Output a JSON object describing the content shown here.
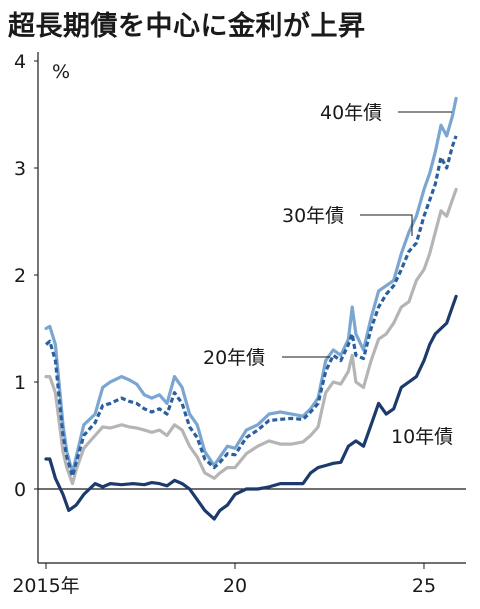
{
  "chart_data": {
    "type": "line",
    "title": "超長期債を中心に金利が上昇",
    "ylabel": "%",
    "xlabel": "",
    "x_range": [
      2015.0,
      2025.9
    ],
    "ylim": [
      -0.7,
      4
    ],
    "y_ticks": [
      0,
      1,
      2,
      3,
      4
    ],
    "x_ticks": [
      {
        "x": 2015.0,
        "label": "2015年"
      },
      {
        "x": 2020.0,
        "label": "20"
      },
      {
        "x": 2025.0,
        "label": "25"
      }
    ],
    "grid": false,
    "legend": "direct labels on lines",
    "series": [
      {
        "name": "40年債",
        "color": "#7ba6d2",
        "style": "solid",
        "points": [
          [
            2015.0,
            1.5
          ],
          [
            2015.1,
            1.52
          ],
          [
            2015.25,
            1.35
          ],
          [
            2015.45,
            0.6
          ],
          [
            2015.55,
            0.35
          ],
          [
            2015.7,
            0.15
          ],
          [
            2015.8,
            0.3
          ],
          [
            2016.0,
            0.6
          ],
          [
            2016.3,
            0.7
          ],
          [
            2016.5,
            0.95
          ],
          [
            2016.7,
            1.0
          ],
          [
            2017.0,
            1.05
          ],
          [
            2017.2,
            1.02
          ],
          [
            2017.4,
            0.98
          ],
          [
            2017.6,
            0.88
          ],
          [
            2017.8,
            0.85
          ],
          [
            2018.0,
            0.88
          ],
          [
            2018.2,
            0.8
          ],
          [
            2018.4,
            1.05
          ],
          [
            2018.6,
            0.95
          ],
          [
            2018.8,
            0.7
          ],
          [
            2019.0,
            0.6
          ],
          [
            2019.2,
            0.35
          ],
          [
            2019.45,
            0.22
          ],
          [
            2019.6,
            0.3
          ],
          [
            2019.8,
            0.4
          ],
          [
            2020.0,
            0.38
          ],
          [
            2020.3,
            0.55
          ],
          [
            2020.6,
            0.6
          ],
          [
            2020.9,
            0.7
          ],
          [
            2021.2,
            0.72
          ],
          [
            2021.5,
            0.7
          ],
          [
            2021.8,
            0.68
          ],
          [
            2022.0,
            0.75
          ],
          [
            2022.2,
            0.85
          ],
          [
            2022.4,
            1.2
          ],
          [
            2022.6,
            1.3
          ],
          [
            2022.8,
            1.25
          ],
          [
            2023.0,
            1.4
          ],
          [
            2023.1,
            1.7
          ],
          [
            2023.2,
            1.45
          ],
          [
            2023.4,
            1.3
          ],
          [
            2023.6,
            1.6
          ],
          [
            2023.8,
            1.85
          ],
          [
            2024.0,
            1.9
          ],
          [
            2024.2,
            1.95
          ],
          [
            2024.4,
            2.2
          ],
          [
            2024.6,
            2.4
          ],
          [
            2024.8,
            2.55
          ],
          [
            2025.0,
            2.8
          ],
          [
            2025.15,
            2.95
          ],
          [
            2025.3,
            3.15
          ],
          [
            2025.45,
            3.4
          ],
          [
            2025.6,
            3.3
          ],
          [
            2025.75,
            3.48
          ],
          [
            2025.85,
            3.65
          ]
        ]
      },
      {
        "name": "30年債",
        "color": "#2b5f9e",
        "style": "dashed",
        "points": [
          [
            2015.0,
            1.35
          ],
          [
            2015.1,
            1.38
          ],
          [
            2015.25,
            1.2
          ],
          [
            2015.45,
            0.5
          ],
          [
            2015.55,
            0.3
          ],
          [
            2015.7,
            0.12
          ],
          [
            2015.8,
            0.25
          ],
          [
            2016.0,
            0.5
          ],
          [
            2016.3,
            0.62
          ],
          [
            2016.5,
            0.78
          ],
          [
            2016.7,
            0.8
          ],
          [
            2017.0,
            0.85
          ],
          [
            2017.2,
            0.82
          ],
          [
            2017.4,
            0.8
          ],
          [
            2017.6,
            0.75
          ],
          [
            2017.8,
            0.72
          ],
          [
            2018.0,
            0.75
          ],
          [
            2018.2,
            0.7
          ],
          [
            2018.4,
            0.9
          ],
          [
            2018.6,
            0.8
          ],
          [
            2018.8,
            0.58
          ],
          [
            2019.0,
            0.48
          ],
          [
            2019.2,
            0.28
          ],
          [
            2019.45,
            0.2
          ],
          [
            2019.6,
            0.25
          ],
          [
            2019.8,
            0.33
          ],
          [
            2020.0,
            0.32
          ],
          [
            2020.3,
            0.48
          ],
          [
            2020.6,
            0.55
          ],
          [
            2020.9,
            0.64
          ],
          [
            2021.2,
            0.65
          ],
          [
            2021.5,
            0.66
          ],
          [
            2021.8,
            0.65
          ],
          [
            2022.0,
            0.72
          ],
          [
            2022.2,
            0.8
          ],
          [
            2022.4,
            1.1
          ],
          [
            2022.6,
            1.25
          ],
          [
            2022.8,
            1.2
          ],
          [
            2023.0,
            1.35
          ],
          [
            2023.1,
            1.45
          ],
          [
            2023.2,
            1.25
          ],
          [
            2023.4,
            1.22
          ],
          [
            2023.6,
            1.5
          ],
          [
            2023.8,
            1.7
          ],
          [
            2024.0,
            1.82
          ],
          [
            2024.2,
            1.9
          ],
          [
            2024.4,
            2.05
          ],
          [
            2024.6,
            2.22
          ],
          [
            2024.8,
            2.3
          ],
          [
            2025.0,
            2.55
          ],
          [
            2025.15,
            2.7
          ],
          [
            2025.3,
            2.85
          ],
          [
            2025.45,
            3.1
          ],
          [
            2025.6,
            3.0
          ],
          [
            2025.75,
            3.2
          ],
          [
            2025.85,
            3.3
          ]
        ]
      },
      {
        "name": "20年債",
        "color": "#b5b5b5",
        "style": "solid",
        "points": [
          [
            2015.0,
            1.05
          ],
          [
            2015.1,
            1.05
          ],
          [
            2015.25,
            0.9
          ],
          [
            2015.45,
            0.35
          ],
          [
            2015.55,
            0.2
          ],
          [
            2015.7,
            0.05
          ],
          [
            2015.8,
            0.18
          ],
          [
            2016.0,
            0.38
          ],
          [
            2016.3,
            0.5
          ],
          [
            2016.5,
            0.58
          ],
          [
            2016.7,
            0.57
          ],
          [
            2017.0,
            0.6
          ],
          [
            2017.2,
            0.58
          ],
          [
            2017.4,
            0.57
          ],
          [
            2017.6,
            0.55
          ],
          [
            2017.8,
            0.53
          ],
          [
            2018.0,
            0.55
          ],
          [
            2018.2,
            0.5
          ],
          [
            2018.4,
            0.6
          ],
          [
            2018.6,
            0.55
          ],
          [
            2018.8,
            0.4
          ],
          [
            2019.0,
            0.3
          ],
          [
            2019.2,
            0.15
          ],
          [
            2019.45,
            0.1
          ],
          [
            2019.6,
            0.15
          ],
          [
            2019.8,
            0.2
          ],
          [
            2020.0,
            0.2
          ],
          [
            2020.3,
            0.33
          ],
          [
            2020.6,
            0.4
          ],
          [
            2020.9,
            0.45
          ],
          [
            2021.2,
            0.42
          ],
          [
            2021.5,
            0.42
          ],
          [
            2021.8,
            0.44
          ],
          [
            2022.0,
            0.5
          ],
          [
            2022.2,
            0.58
          ],
          [
            2022.4,
            0.9
          ],
          [
            2022.6,
            1.0
          ],
          [
            2022.8,
            0.98
          ],
          [
            2023.0,
            1.1
          ],
          [
            2023.1,
            1.25
          ],
          [
            2023.2,
            1.0
          ],
          [
            2023.4,
            0.95
          ],
          [
            2023.6,
            1.2
          ],
          [
            2023.8,
            1.4
          ],
          [
            2024.0,
            1.45
          ],
          [
            2024.2,
            1.55
          ],
          [
            2024.4,
            1.7
          ],
          [
            2024.6,
            1.75
          ],
          [
            2024.8,
            1.95
          ],
          [
            2025.0,
            2.05
          ],
          [
            2025.15,
            2.2
          ],
          [
            2025.3,
            2.4
          ],
          [
            2025.45,
            2.6
          ],
          [
            2025.6,
            2.55
          ],
          [
            2025.75,
            2.7
          ],
          [
            2025.85,
            2.8
          ]
        ]
      },
      {
        "name": "10年債",
        "color": "#1c3a6b",
        "style": "solid",
        "points": [
          [
            2015.0,
            0.28
          ],
          [
            2015.1,
            0.28
          ],
          [
            2015.25,
            0.1
          ],
          [
            2015.45,
            -0.05
          ],
          [
            2015.6,
            -0.2
          ],
          [
            2015.8,
            -0.15
          ],
          [
            2016.0,
            -0.05
          ],
          [
            2016.3,
            0.05
          ],
          [
            2016.5,
            0.02
          ],
          [
            2016.7,
            0.05
          ],
          [
            2017.0,
            0.04
          ],
          [
            2017.3,
            0.05
          ],
          [
            2017.6,
            0.04
          ],
          [
            2017.8,
            0.06
          ],
          [
            2018.0,
            0.05
          ],
          [
            2018.2,
            0.03
          ],
          [
            2018.4,
            0.08
          ],
          [
            2018.6,
            0.05
          ],
          [
            2018.8,
            0.0
          ],
          [
            2019.0,
            -0.1
          ],
          [
            2019.2,
            -0.2
          ],
          [
            2019.45,
            -0.28
          ],
          [
            2019.6,
            -0.2
          ],
          [
            2019.8,
            -0.15
          ],
          [
            2020.0,
            -0.05
          ],
          [
            2020.3,
            0.0
          ],
          [
            2020.6,
            0.0
          ],
          [
            2020.9,
            0.02
          ],
          [
            2021.2,
            0.05
          ],
          [
            2021.5,
            0.05
          ],
          [
            2021.8,
            0.05
          ],
          [
            2022.0,
            0.15
          ],
          [
            2022.2,
            0.2
          ],
          [
            2022.4,
            0.22
          ],
          [
            2022.6,
            0.24
          ],
          [
            2022.8,
            0.25
          ],
          [
            2023.0,
            0.4
          ],
          [
            2023.2,
            0.45
          ],
          [
            2023.4,
            0.4
          ],
          [
            2023.6,
            0.6
          ],
          [
            2023.8,
            0.8
          ],
          [
            2024.0,
            0.7
          ],
          [
            2024.2,
            0.75
          ],
          [
            2024.4,
            0.95
          ],
          [
            2024.6,
            1.0
          ],
          [
            2024.8,
            1.05
          ],
          [
            2025.0,
            1.2
          ],
          [
            2025.15,
            1.35
          ],
          [
            2025.3,
            1.45
          ],
          [
            2025.45,
            1.5
          ],
          [
            2025.6,
            1.55
          ],
          [
            2025.75,
            1.7
          ],
          [
            2025.85,
            1.8
          ]
        ]
      }
    ]
  }
}
